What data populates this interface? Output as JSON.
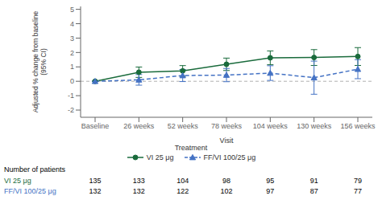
{
  "chart_data": {
    "type": "line",
    "xlabel": "Visit",
    "ylabel": "Adjusted % change from baseline\n(95% CI)",
    "categories": [
      "Baseline",
      "26 weeks",
      "52 weeks",
      "78 weeks",
      "104 weeks",
      "130 weeks",
      "156 weeks"
    ],
    "series": [
      {
        "name": "VI 25 μg",
        "color": "#1a6b3c",
        "marker": "circle",
        "line_style": "solid",
        "values": [
          0.0,
          0.63,
          0.72,
          1.18,
          1.63,
          1.65,
          1.72
        ],
        "ci_low": [
          0.0,
          0.27,
          0.35,
          0.75,
          1.15,
          1.1,
          1.1
        ],
        "ci_high": [
          0.0,
          0.99,
          1.09,
          1.61,
          2.11,
          2.2,
          2.34
        ]
      },
      {
        "name": "FF/VI 100/25 μg",
        "color": "#4472c4",
        "marker": "triangle",
        "line_style": "dashed",
        "values": [
          0.0,
          0.1,
          0.4,
          0.43,
          0.57,
          0.25,
          0.84
        ],
        "ci_low": [
          0.0,
          -0.27,
          -0.02,
          -0.03,
          0.06,
          -0.9,
          0.18
        ],
        "ci_high": [
          0.0,
          0.47,
          0.82,
          0.89,
          1.08,
          1.4,
          1.5
        ]
      }
    ],
    "ylim": [
      -2.5,
      5.2
    ],
    "yticks": [
      -2,
      -1,
      0,
      1,
      2,
      3,
      4,
      5
    ],
    "grid": false,
    "legend": "bottom",
    "legend_title": "Treatment",
    "reference_line": {
      "y": 0,
      "color": "#b0b0b0"
    },
    "table": {
      "title": "Number of patients",
      "rows": [
        {
          "label": "VI 25 μg",
          "color": "#1a6b3c",
          "values": [
            135,
            133,
            104,
            98,
            95,
            91,
            79
          ]
        },
        {
          "label": "FF/VI 100/25 μg",
          "color": "#4472c4",
          "values": [
            132,
            132,
            122,
            102,
            97,
            87,
            77
          ]
        }
      ]
    }
  }
}
